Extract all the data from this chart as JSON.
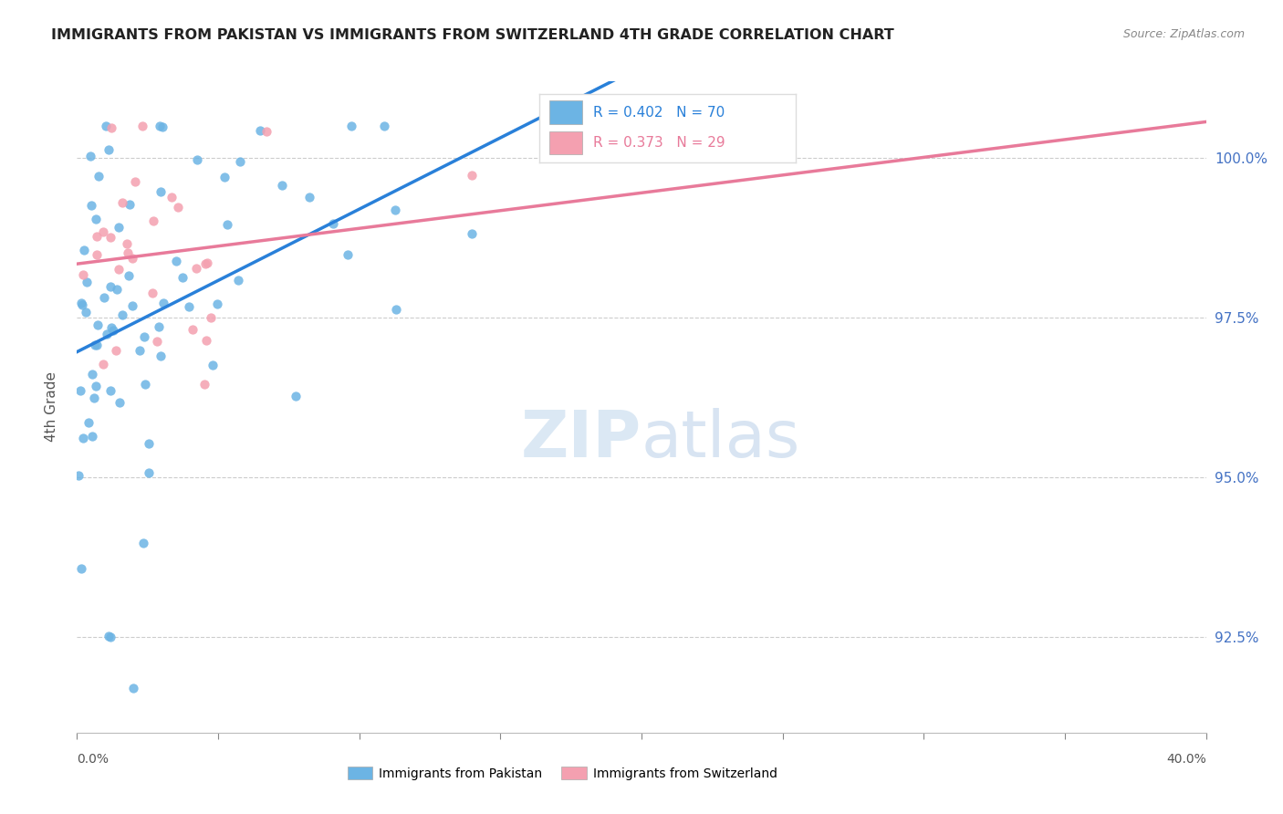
{
  "title": "IMMIGRANTS FROM PAKISTAN VS IMMIGRANTS FROM SWITZERLAND 4TH GRADE CORRELATION CHART",
  "source": "Source: ZipAtlas.com",
  "ylabel": "4th Grade",
  "xlim": [
    0.0,
    40.0
  ],
  "ylim": [
    91.0,
    101.2
  ],
  "pakistan_color": "#6cb4e4",
  "switzerland_color": "#f4a0b0",
  "pakistan_line_color": "#2980d9",
  "switzerland_line_color": "#e87a9a",
  "R_pakistan": 0.402,
  "N_pakistan": 70,
  "R_switzerland": 0.373,
  "N_switzerland": 29,
  "ytick_positions": [
    92.5,
    95.0,
    97.5,
    100.0
  ]
}
